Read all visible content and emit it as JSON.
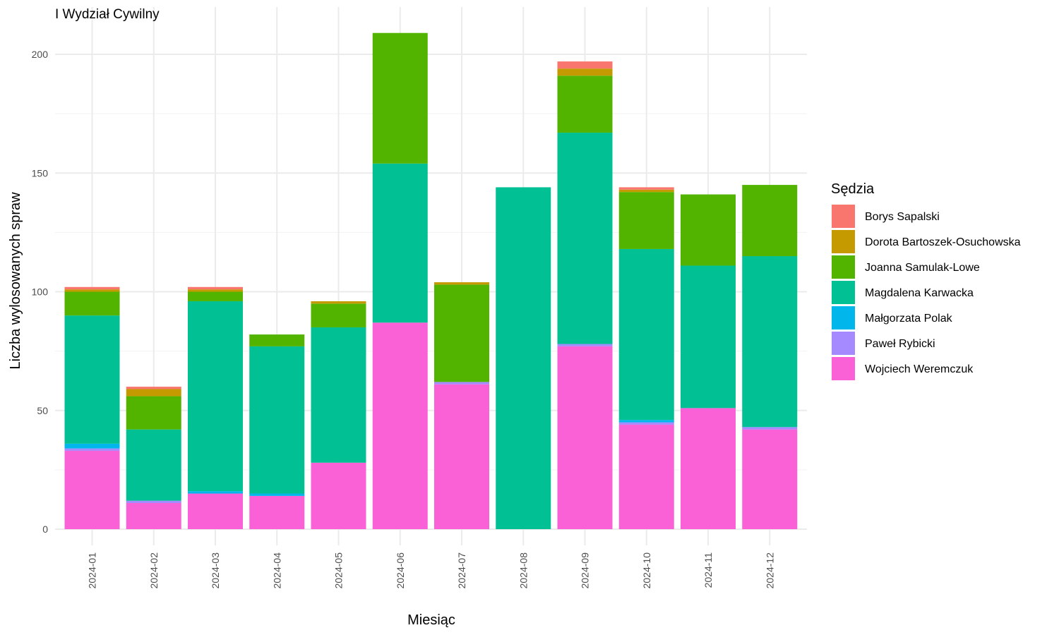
{
  "chart_data": {
    "type": "bar",
    "stacked": true,
    "title": "I Wydział Cywilny",
    "xlabel": "Miesiąc",
    "ylabel": "Liczba wylosowanych spraw",
    "ylim": [
      0,
      215
    ],
    "yticks": [
      0,
      50,
      100,
      150,
      200
    ],
    "grid": true,
    "legend_position": "right",
    "legend_title": "Sędzia",
    "categories": [
      "2024-01",
      "2024-02",
      "2024-03",
      "2024-04",
      "2024-05",
      "2024-06",
      "2024-07",
      "2024-08",
      "2024-09",
      "2024-10",
      "2024-11",
      "2024-12"
    ],
    "series": [
      {
        "name": "Wojciech Weremczuk",
        "color": "#FB61D7",
        "values": [
          33,
          11,
          15,
          14,
          28,
          87,
          61,
          0,
          77,
          44,
          51,
          42
        ]
      },
      {
        "name": "Paweł Rybicki",
        "color": "#A58AFF",
        "values": [
          1,
          1,
          0,
          0,
          0,
          0,
          1,
          0,
          1,
          1,
          0,
          1
        ]
      },
      {
        "name": "Małgorzata Polak",
        "color": "#00B6EB",
        "values": [
          2,
          0,
          1,
          1,
          0,
          0,
          0,
          0,
          0,
          1,
          0,
          0
        ]
      },
      {
        "name": "Magdalena Karwacka",
        "color": "#00C094",
        "values": [
          54,
          30,
          80,
          62,
          57,
          67,
          0,
          144,
          89,
          72,
          60,
          72
        ]
      },
      {
        "name": "Joanna Samulak-Lowe",
        "color": "#53B400",
        "values": [
          10,
          14,
          4,
          5,
          10,
          55,
          41,
          0,
          24,
          24,
          30,
          30
        ]
      },
      {
        "name": "Dorota Bartoszek-Osuchowska",
        "color": "#C49A00",
        "values": [
          1,
          3,
          1,
          0,
          1,
          0,
          1,
          0,
          3,
          1,
          0,
          0
        ]
      },
      {
        "name": "Borys Sapalski",
        "color": "#F8766D",
        "values": [
          1,
          1,
          1,
          0,
          0,
          0,
          0,
          0,
          3,
          1,
          0,
          0
        ]
      }
    ],
    "legend_order": [
      "Borys Sapalski",
      "Dorota Bartoszek-Osuchowska",
      "Joanna Samulak-Lowe",
      "Magdalena Karwacka",
      "Małgorzata Polak",
      "Paweł Rybicki",
      "Wojciech Weremczuk"
    ]
  }
}
